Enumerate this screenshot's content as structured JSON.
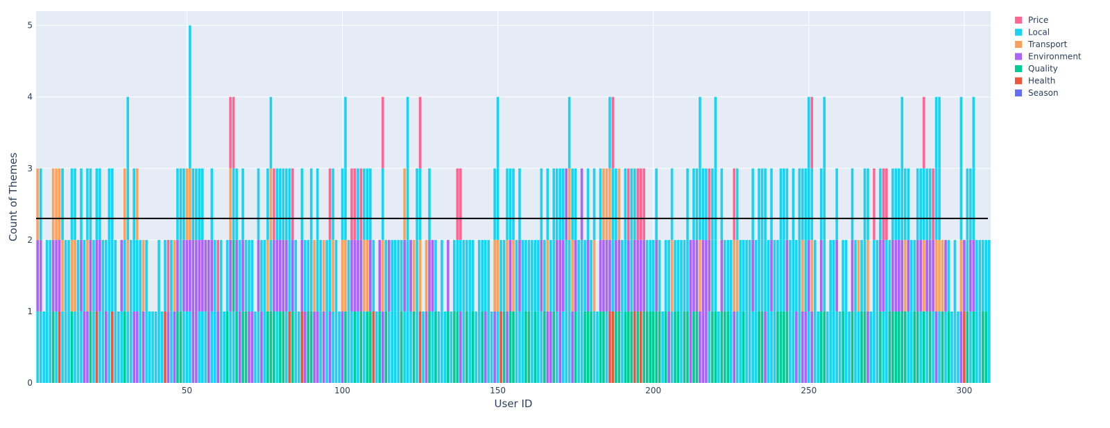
{
  "chart_data": {
    "type": "bar",
    "barmode": "stack",
    "title": "",
    "xlabel": "User ID",
    "ylabel": "Count of Themes",
    "xlim": [
      1.5,
      308.5
    ],
    "ylim": [
      0,
      5.2
    ],
    "xticks": [
      50,
      100,
      150,
      200,
      250,
      300
    ],
    "yticks": [
      0,
      1,
      2,
      3,
      4,
      5
    ],
    "reference_line": 2.3,
    "reference_line_color": "#000000",
    "plot_background": "#e5ecf6",
    "grid": true,
    "legend_position": "top-right",
    "legend": [
      "Price",
      "Local",
      "Transport",
      "Environment",
      "Quality",
      "Health",
      "Season"
    ],
    "theme_colors": {
      "Price": "#ff6692",
      "Local": "#19d3f3",
      "Transport": "#ffa15a",
      "Environment": "#ab63fa",
      "Quality": "#00cc96",
      "Health": "#ef553b",
      "Season": "#636efa"
    },
    "legend_order": [
      "Price",
      "Local",
      "Transport",
      "Environment",
      "Quality",
      "Health",
      "Season"
    ],
    "key": {
      "P": "Price",
      "L": "Local",
      "T": "Transport",
      "E": "Environment",
      "Q": "Quality",
      "H": "Health",
      "S": "Season"
    },
    "bars": {
      "2": "LET",
      "3": "LEL",
      "4": "L",
      "5": "LL",
      "6": "LL",
      "7": "QET",
      "8": "LET",
      "9": "HET",
      "10": "LTL",
      "11": "LL",
      "12": "LL",
      "13": "QTL",
      "14": "LTL",
      "15": "LL",
      "16": "LEL",
      "17": "EL",
      "18": "ETL",
      "19": "QEL",
      "20": "LL",
      "21": "HEL",
      "22": "LEL",
      "23": "LL",
      "24": "EL",
      "25": "LLL",
      "26": "HLL",
      "27": "LL",
      "28": "L",
      "29": "LE",
      "30": "QLT",
      "31": "LTLL",
      "32": "LL",
      "33": "ELL",
      "34": "ELT",
      "35": "LL",
      "36": "ET",
      "37": "LL",
      "38": "L",
      "39": "L",
      "40": "L",
      "41": "LL",
      "42": "L",
      "43": "HL",
      "44": "EP",
      "45": "LL",
      "46": "ET",
      "47": "QEL",
      "48": "QLL",
      "49": "LEL",
      "50": "LET",
      "51": "LETLL",
      "52": "EEL",
      "53": "EEL",
      "54": "LEL",
      "55": "LEL",
      "56": "LE",
      "57": "EE",
      "58": "LEL",
      "59": "LL",
      "60": "EP",
      "61": "LL",
      "62": "L",
      "63": "QL",
      "64": "LETP",
      "65": "LQLP",
      "66": "QEL",
      "67": "EL",
      "68": "QEL",
      "69": "QL",
      "70": "EL",
      "71": "EL",
      "72": "L",
      "73": "LEL",
      "74": "EL",
      "75": "LL",
      "76": "QTL",
      "77": "QLTL",
      "78": "QEP",
      "79": "LEL",
      "80": "QEL",
      "81": "QEL",
      "82": "LEL",
      "83": "HLL",
      "84": "QEP",
      "85": "LL",
      "86": "L",
      "87": "HEL",
      "88": "EL",
      "89": "QL",
      "90": "QLL",
      "91": "ET",
      "92": "ELL",
      "93": "LL",
      "94": "ET",
      "95": "LL",
      "96": "ELP",
      "97": "LTL",
      "98": "LL",
      "99": "L",
      "100": "ETL",
      "101": "QTLL",
      "102": "LL",
      "103": "LEP",
      "104": "QEP",
      "105": "LEL",
      "106": "QEP",
      "107": "LTL",
      "108": "QTL",
      "109": "QEL",
      "110": "HL",
      "111": "L",
      "112": "QE",
      "113": "ETLP",
      "114": "QL",
      "115": "LE",
      "116": "LL",
      "117": "LL",
      "118": "LL",
      "119": "QL",
      "120": "LET",
      "121": "LLLL",
      "122": "LE",
      "123": "QT",
      "124": "LLL",
      "125": "HTLP",
      "126": "L",
      "127": "ET",
      "128": "QEL",
      "129": "LE",
      "130": "QL",
      "131": "L",
      "132": "LL",
      "133": "L",
      "134": "QE",
      "135": "L",
      "136": "QL",
      "137": "QLP",
      "138": "ELP",
      "139": "LL",
      "140": "QL",
      "141": "LL",
      "142": "QL",
      "143": "L",
      "144": "LL",
      "145": "QL",
      "146": "EL",
      "147": "LL",
      "148": "L",
      "149": "ETL",
      "150": "LTLL",
      "151": "HL",
      "152": "QL",
      "153": "ETL",
      "154": "QEL",
      "155": "QTL",
      "156": "LL",
      "157": "LEL",
      "158": "LL",
      "159": "QL",
      "160": "QL",
      "161": "LL",
      "162": "QL",
      "163": "LL",
      "164": "LEL",
      "165": "QL",
      "166": "ETL",
      "167": "EL",
      "168": "QLL",
      "169": "LEL",
      "170": "EEL",
      "171": "LEL",
      "172": "LLE",
      "173": "LLTL",
      "174": "ETL",
      "175": "QEL",
      "176": "LL",
      "177": "LLE",
      "178": "QL",
      "179": "QEL",
      "180": "QL",
      "181": "LTL",
      "182": "L",
      "183": "QEL",
      "184": "QET",
      "185": "LET",
      "186": "HETL",
      "187": "HLLP",
      "188": "QEL",
      "189": "QET",
      "190": "LL",
      "191": "QLL",
      "192": "QEP",
      "193": "QLL",
      "194": "HEL",
      "195": "QEP",
      "196": "HEP",
      "197": "QEP",
      "198": "QL",
      "199": "QL",
      "200": "QL",
      "201": "QEL",
      "202": "QL",
      "203": "L",
      "204": "QL",
      "205": "EL",
      "206": "LTL",
      "207": "QL",
      "208": "QL",
      "209": "LL",
      "210": "QL",
      "211": "QLL",
      "212": "EE",
      "213": "QEL",
      "214": "QEL",
      "215": "ETLL",
      "216": "EEL",
      "217": "EEL",
      "218": "LEP",
      "219": "QLL",
      "220": "QLLL",
      "221": "L",
      "222": "QEL",
      "223": "QL",
      "224": "QL",
      "225": "LL",
      "226": "ETP",
      "227": "LTL",
      "228": "LL",
      "229": "QL",
      "230": "LL",
      "231": "LL",
      "232": "LEL",
      "233": "LL",
      "234": "QLL",
      "235": "QLL",
      "236": "ELL",
      "237": "LL",
      "238": "LEL",
      "239": "LL",
      "240": "QL",
      "241": "QLL",
      "242": "QLL",
      "243": "QEL",
      "244": "LL",
      "245": "LLL",
      "246": "EL",
      "247": "LLL",
      "248": "ETL",
      "249": "ELL",
      "250": "LELL",
      "251": "ETLP",
      "252": "LL",
      "253": "L",
      "254": "QEL",
      "255": "QLLL",
      "256": "L",
      "257": "LL",
      "258": "LL",
      "259": "LEL",
      "260": "L",
      "261": "QL",
      "262": "LL",
      "263": "L",
      "264": "QEL",
      "265": "LL",
      "266": "LT",
      "267": "QL",
      "268": "QLL",
      "269": "ETL",
      "270": "L",
      "271": "LLP",
      "272": "LL",
      "273": "QEL",
      "274": "LEP",
      "275": "LLP",
      "276": "QL",
      "277": "QEL",
      "278": "QEL",
      "279": "QEL",
      "280": "QELL",
      "281": "QTL",
      "282": "LEL",
      "283": "LL",
      "284": "QL",
      "285": "QEL",
      "286": "LEL",
      "287": "QTLP",
      "288": "LEL",
      "289": "QEL",
      "290": "LEP",
      "291": "ETLL",
      "292": "LTLL",
      "293": "QT",
      "294": "LE",
      "295": "QL",
      "296": "L",
      "297": "LL",
      "298": "L",
      "299": "ETLL",
      "300": "HE",
      "301": "QLL",
      "302": "LEL",
      "303": "QELL",
      "304": "LL",
      "305": "LL",
      "306": "QL",
      "307": "QL",
      "308": "LL"
    }
  }
}
